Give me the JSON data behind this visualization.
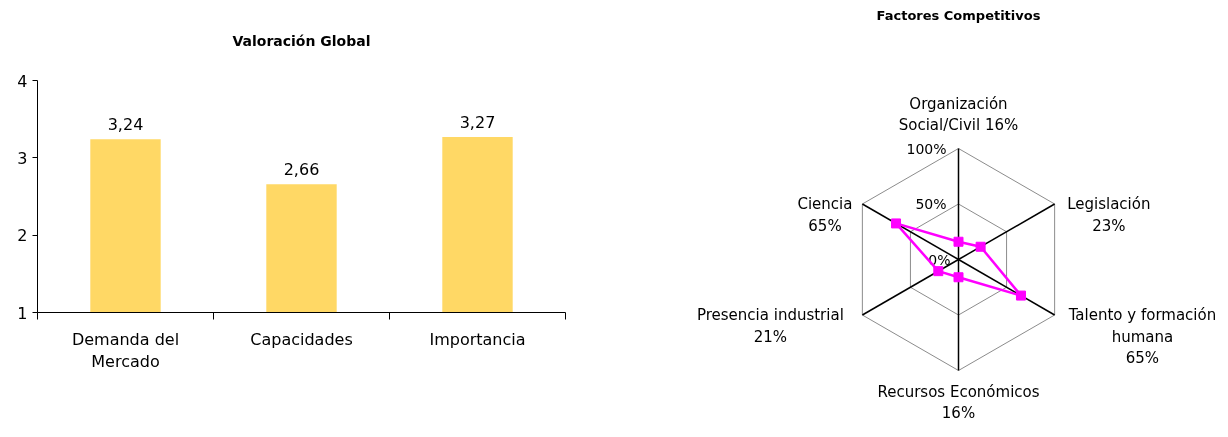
{
  "chart_data": [
    {
      "type": "bar",
      "title": "Valoración Global",
      "categories": [
        "Demanda del Mercado",
        "Capacidades",
        "Importancia"
      ],
      "values": [
        3.24,
        2.66,
        3.27
      ],
      "value_labels": [
        "3,24",
        "2,66",
        "3,27"
      ],
      "color": "#ffd865",
      "ylim": [
        1,
        4
      ],
      "yticks": [
        1,
        2,
        3,
        4
      ]
    },
    {
      "type": "radar",
      "title": "Factores Competitivos",
      "categories": [
        "Organización Social/Civil 16%",
        "Legislación 23%",
        "Talento y formación humana 65%",
        "Recursos Económicos 16%",
        "Presencia industrial 21%",
        "Ciencia 65%"
      ],
      "series": [
        {
          "color": "#ff00ff",
          "values": [
            16,
            23,
            65,
            16,
            21,
            65
          ]
        }
      ],
      "ylim": [
        0,
        100
      ],
      "yticks": [
        {
          "value": 0,
          "label": "0%"
        },
        {
          "value": 50,
          "label": "50%"
        },
        {
          "value": 100,
          "label": "100%"
        }
      ],
      "grid": true,
      "marker": "square"
    }
  ]
}
